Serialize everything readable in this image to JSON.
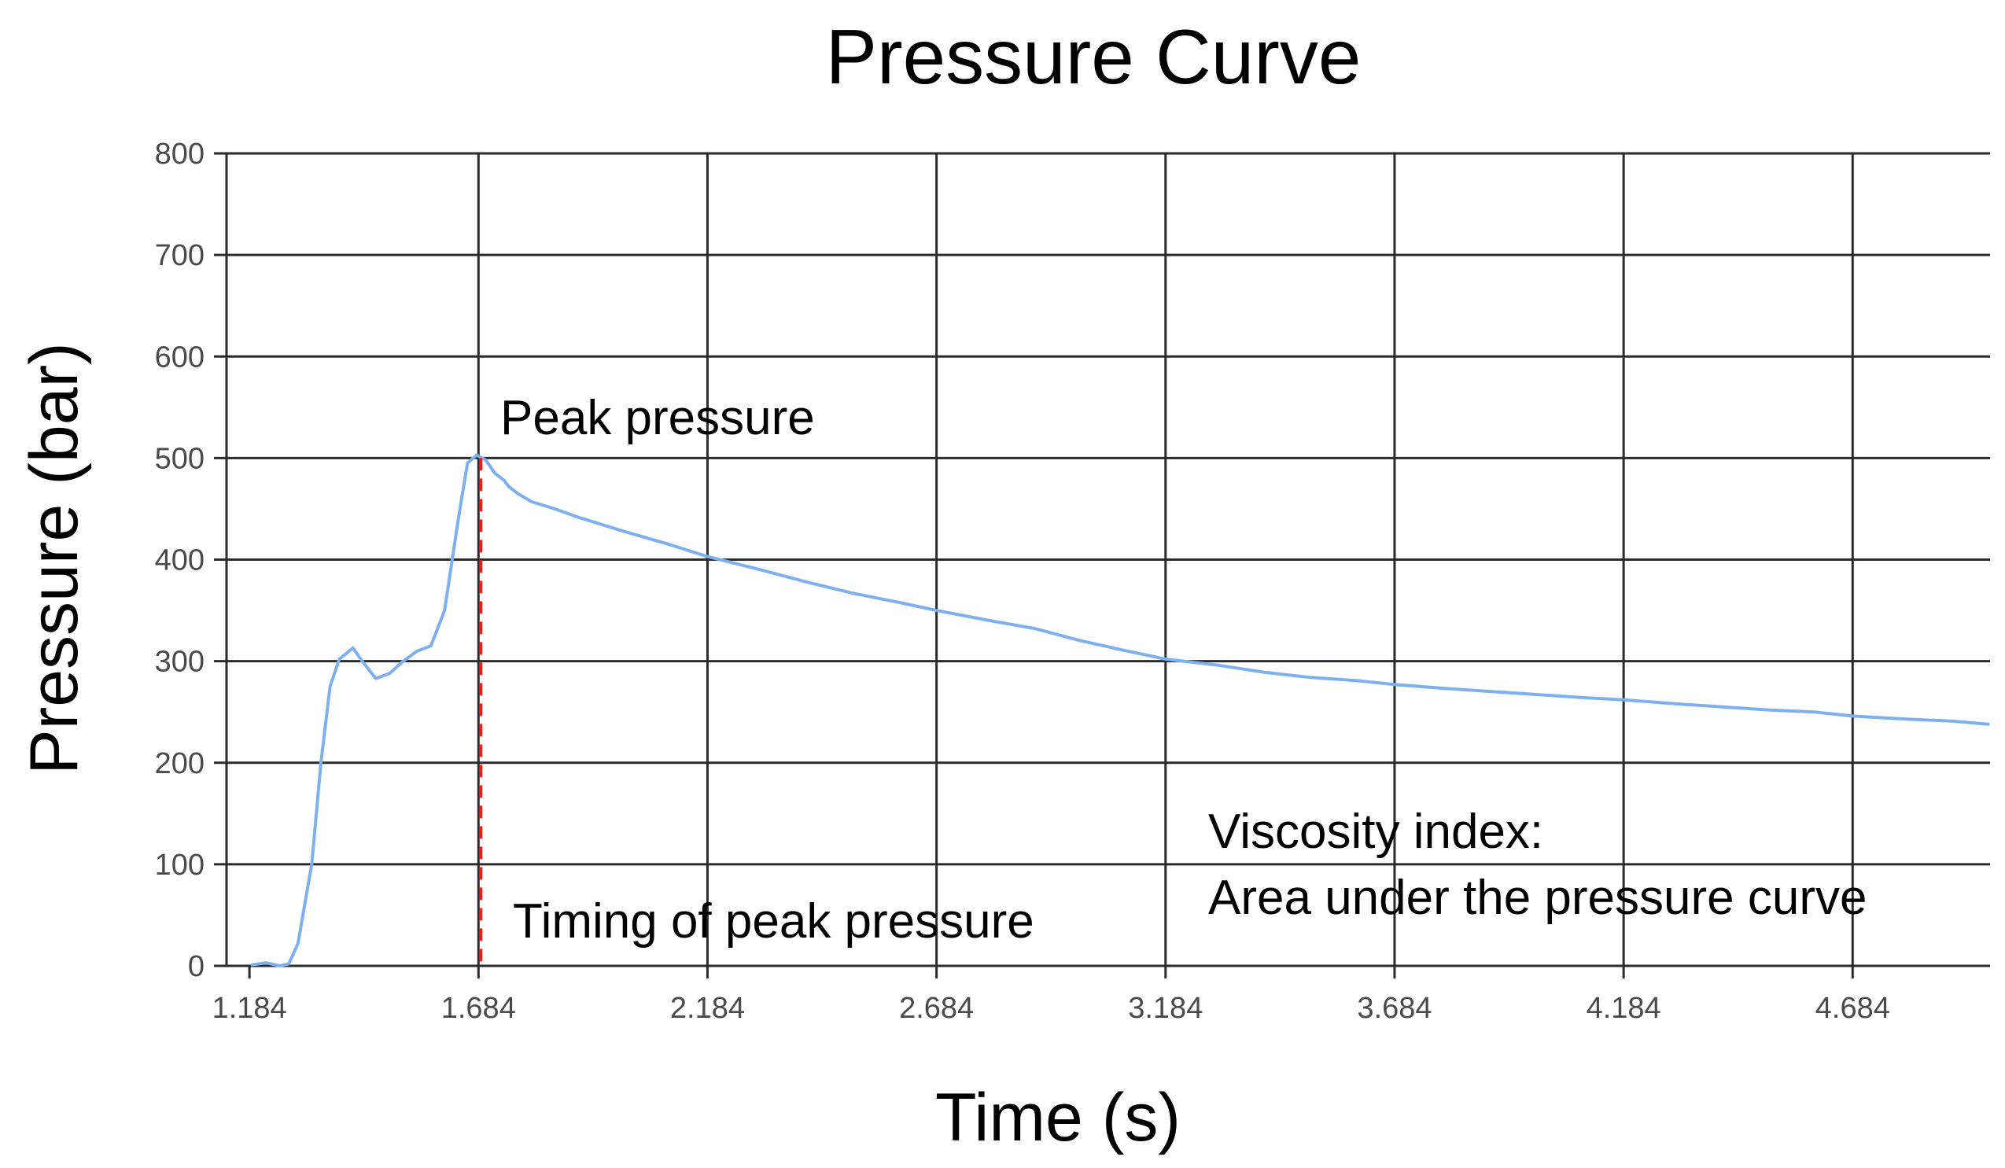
{
  "chart_data": {
    "type": "line",
    "title": "Pressure Curve",
    "xlabel": "Time (s)",
    "ylabel": "Pressure (bar)",
    "xlim": [
      1.134,
      4.984
    ],
    "ylim": [
      0,
      800
    ],
    "grid": true,
    "x_ticks": [
      1.184,
      1.684,
      2.184,
      2.684,
      3.184,
      3.684,
      4.184,
      4.684
    ],
    "x_tick_labels": [
      "1.184",
      "1.684",
      "2.184",
      "2.684",
      "3.184",
      "3.684",
      "4.184",
      "4.684"
    ],
    "y_ticks": [
      0,
      100,
      200,
      300,
      400,
      500,
      600,
      700,
      800
    ],
    "y_tick_labels": [
      "0",
      "100",
      "200",
      "300",
      "400",
      "500",
      "600",
      "700",
      "800"
    ],
    "series": [
      {
        "name": "Pressure",
        "color": "#7fb0ee",
        "x": [
          1.19,
          1.22,
          1.25,
          1.27,
          1.29,
          1.32,
          1.34,
          1.36,
          1.38,
          1.41,
          1.43,
          1.46,
          1.49,
          1.52,
          1.55,
          1.58,
          1.61,
          1.64,
          1.66,
          1.68,
          1.7,
          1.72,
          1.74,
          1.75,
          1.77,
          1.8,
          1.85,
          1.9,
          2.0,
          2.1,
          2.184,
          2.3,
          2.4,
          2.5,
          2.6,
          2.684,
          2.8,
          2.9,
          3.0,
          3.1,
          3.184,
          3.3,
          3.4,
          3.5,
          3.6,
          3.684,
          3.8,
          3.9,
          4.0,
          4.1,
          4.184,
          4.3,
          4.4,
          4.5,
          4.6,
          4.684,
          4.8,
          4.9,
          4.98
        ],
        "values": [
          1,
          3,
          0,
          2,
          22,
          100,
          200,
          275,
          302,
          313,
          300,
          283,
          288,
          300,
          310,
          315,
          350,
          440,
          495,
          503,
          498,
          485,
          478,
          472,
          465,
          457,
          450,
          442,
          428,
          415,
          403,
          390,
          378,
          367,
          358,
          350,
          340,
          332,
          320,
          310,
          302,
          296,
          289,
          284,
          281,
          277,
          273,
          270,
          267,
          264,
          262,
          258,
          255,
          252,
          250,
          246,
          243,
          241,
          238
        ]
      }
    ],
    "annotations": {
      "peak_pressure": "Peak pressure",
      "timing_of_peak": "Timing of peak pressure",
      "viscosity_line1": "Viscosity index:",
      "viscosity_line2": "Area under the pressure curve",
      "peak_x": 1.689,
      "peak_marker_color": "#ff1a1a"
    }
  }
}
